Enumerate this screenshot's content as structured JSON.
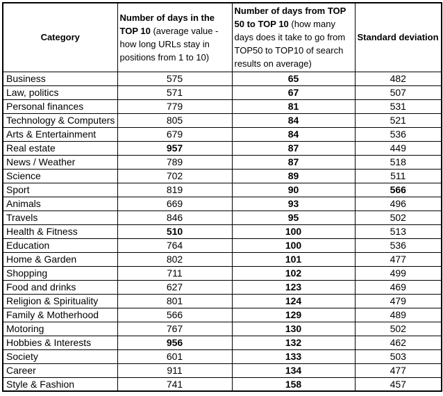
{
  "colors": {
    "border": "#000000",
    "text": "#000000",
    "background": "#ffffff"
  },
  "table": {
    "headers": [
      {
        "title": "Category",
        "note": ""
      },
      {
        "title": "Number of days in the TOP 10",
        "note": " (average value - how long URLs stay in positions from 1 to 10)"
      },
      {
        "title": "Number of days from TOP 50 to TOP 10",
        "note": " (how many days does it take to go from TOP50 to TOP10 of search results on average)"
      },
      {
        "title": "Standard deviation",
        "note": ""
      }
    ],
    "rows": [
      {
        "cells": [
          "Business",
          "575",
          "65",
          "482"
        ],
        "bold": [
          2
        ]
      },
      {
        "cells": [
          "Law, politics",
          "571",
          "67",
          "507"
        ],
        "bold": [
          2
        ]
      },
      {
        "cells": [
          "Personal finances",
          "779",
          "81",
          "531"
        ],
        "bold": [
          2
        ]
      },
      {
        "cells": [
          "Technology & Computers",
          "805",
          "84",
          "521"
        ],
        "bold": [
          2
        ]
      },
      {
        "cells": [
          "Arts & Entertainment",
          "679",
          "84",
          "536"
        ],
        "bold": [
          2
        ]
      },
      {
        "cells": [
          "Real estate",
          "957",
          "87",
          "449"
        ],
        "bold": [
          1,
          2
        ]
      },
      {
        "cells": [
          "News / Weather",
          "789",
          "87",
          "518"
        ],
        "bold": [
          2
        ]
      },
      {
        "cells": [
          "Science",
          "702",
          "89",
          "511"
        ],
        "bold": [
          2
        ]
      },
      {
        "cells": [
          "Sport",
          "819",
          "90",
          "566"
        ],
        "bold": [
          2,
          3
        ]
      },
      {
        "cells": [
          "Animals",
          "669",
          "93",
          "496"
        ],
        "bold": [
          2
        ]
      },
      {
        "cells": [
          "Travels",
          "846",
          "95",
          "502"
        ],
        "bold": [
          2
        ]
      },
      {
        "cells": [
          "Health & Fitness",
          "510",
          "100",
          "513"
        ],
        "bold": [
          1,
          2
        ]
      },
      {
        "cells": [
          "Education",
          "764",
          "100",
          "536"
        ],
        "bold": [
          2
        ]
      },
      {
        "cells": [
          "Home & Garden",
          "802",
          "101",
          "477"
        ],
        "bold": [
          2
        ]
      },
      {
        "cells": [
          "Shopping",
          "711",
          "102",
          "499"
        ],
        "bold": [
          2
        ]
      },
      {
        "cells": [
          "Food and drinks",
          "627",
          "123",
          "469"
        ],
        "bold": [
          2
        ]
      },
      {
        "cells": [
          "Religion & Spirituality",
          "801",
          "124",
          "479"
        ],
        "bold": [
          2
        ]
      },
      {
        "cells": [
          "Family & Motherhood",
          "566",
          "129",
          "489"
        ],
        "bold": [
          2
        ]
      },
      {
        "cells": [
          "Motoring",
          "767",
          "130",
          "502"
        ],
        "bold": [
          2
        ]
      },
      {
        "cells": [
          "Hobbies & Interests",
          "956",
          "132",
          "462"
        ],
        "bold": [
          1,
          2
        ]
      },
      {
        "cells": [
          "Society",
          "601",
          "133",
          "503"
        ],
        "bold": [
          2
        ]
      },
      {
        "cells": [
          "Career",
          "911",
          "134",
          "477"
        ],
        "bold": [
          2
        ]
      },
      {
        "cells": [
          "Style & Fashion",
          "741",
          "158",
          "457"
        ],
        "bold": [
          2
        ]
      }
    ]
  }
}
